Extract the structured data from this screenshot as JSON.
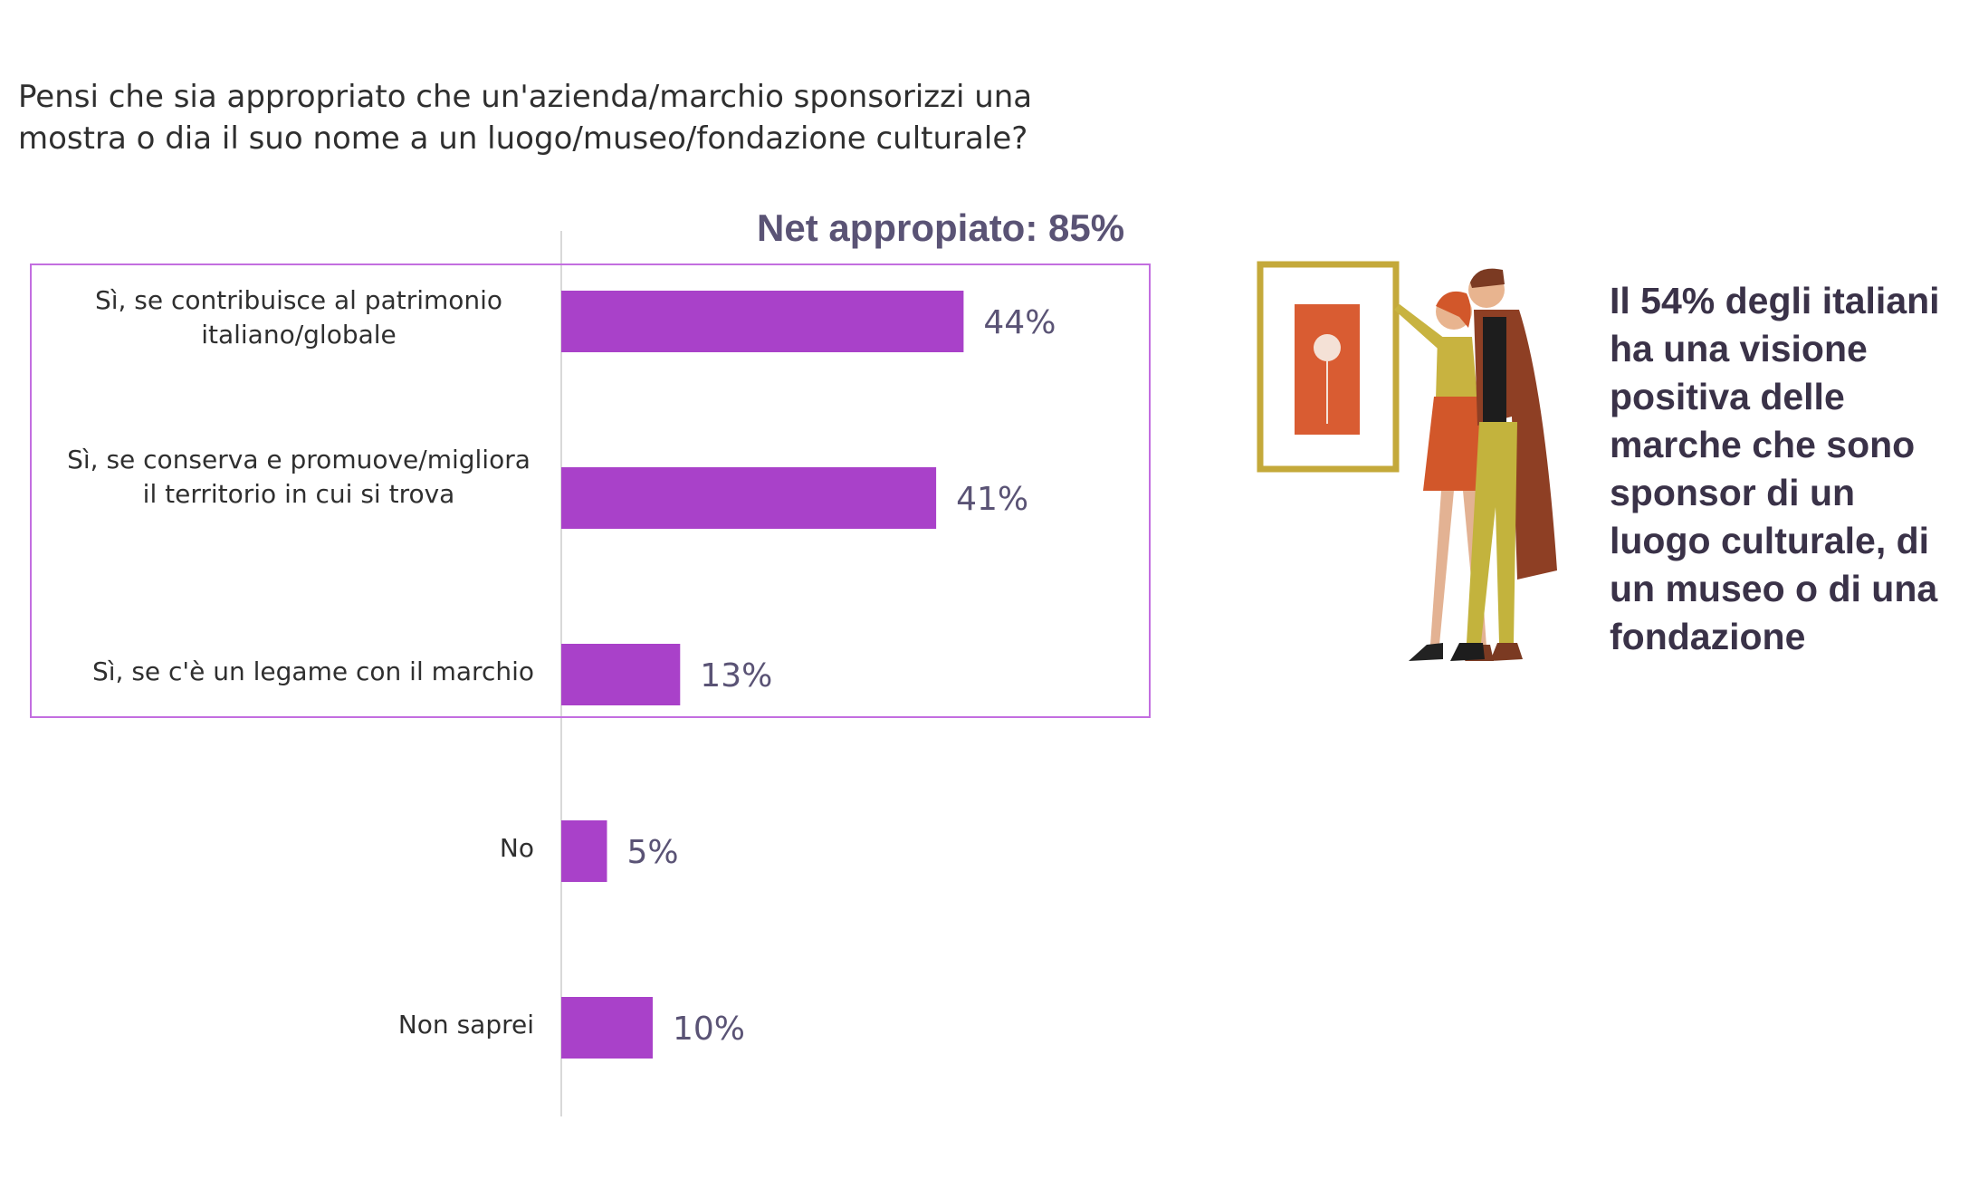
{
  "question": "Pensi che sia appropriato che un'azienda/marchio sponsorizzi una mostra o dia il suo nome a un luogo/museo/fondazione culturale?",
  "net_label": "Net appropiato: 85%",
  "insight": "Il 54% degli italiani ha una visione positiva delle marche che sono sponsor di un luogo culturale, di un museo o di una fondazione",
  "colors": {
    "bar": "#a941c9",
    "box": "#c36ee0",
    "axis": "#d9d9d9",
    "value_text": "#5a5375"
  },
  "chart_data": {
    "type": "bar",
    "orientation": "horizontal",
    "categories": [
      "Sì, se contribuisce al patrimonio italiano/globale",
      "Sì, se conserva e promuove/migliora il territorio in cui si trova",
      "Sì, se c'è un legame con il marchio",
      "No",
      "Non saprei"
    ],
    "values": [
      44,
      41,
      13,
      5,
      10
    ],
    "value_labels": [
      "44%",
      "41%",
      "13%",
      "5%",
      "10%"
    ],
    "unit": "%",
    "highlighted_group": [
      0,
      1,
      2
    ]
  }
}
